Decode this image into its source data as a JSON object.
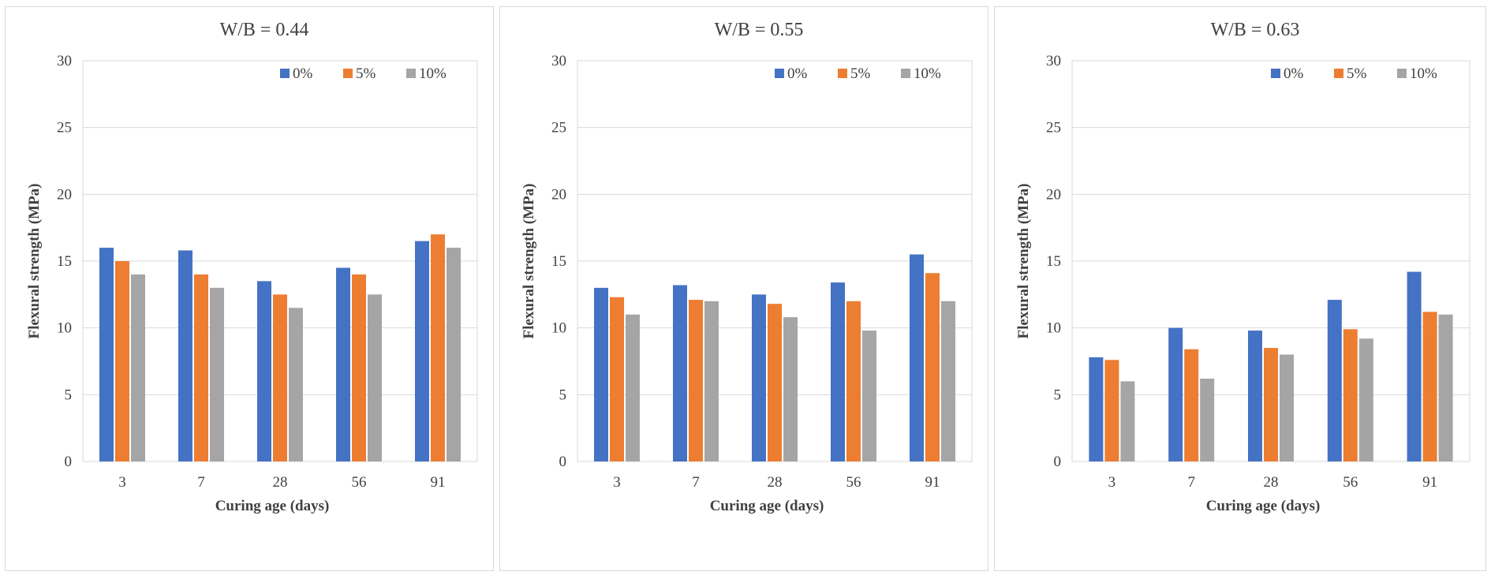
{
  "chart_data": [
    {
      "type": "bar",
      "title": "W/B = 0.44",
      "xlabel": "Curing age (days)",
      "ylabel": "Flexural strength (MPa)",
      "categories": [
        "3",
        "7",
        "28",
        "56",
        "91"
      ],
      "ylim": [
        0,
        30
      ],
      "yticks": [
        0,
        5,
        10,
        15,
        20,
        25,
        30
      ],
      "grid": true,
      "legend_position": "top-right",
      "series": [
        {
          "name": "0%",
          "color": "#4472c4",
          "values": [
            16.0,
            15.8,
            13.5,
            14.5,
            16.5
          ]
        },
        {
          "name": "5%",
          "color": "#ed7d31",
          "values": [
            15.0,
            14.0,
            12.5,
            14.0,
            17.0
          ]
        },
        {
          "name": "10%",
          "color": "#a5a5a5",
          "values": [
            14.0,
            13.0,
            11.5,
            12.5,
            16.0
          ]
        }
      ]
    },
    {
      "type": "bar",
      "title": "W/B = 0.55",
      "xlabel": "Curing age (days)",
      "ylabel": "Flexural strength (MPa)",
      "categories": [
        "3",
        "7",
        "28",
        "56",
        "91"
      ],
      "ylim": [
        0,
        30
      ],
      "yticks": [
        0,
        5,
        10,
        15,
        20,
        25,
        30
      ],
      "grid": true,
      "legend_position": "top-right",
      "series": [
        {
          "name": "0%",
          "color": "#4472c4",
          "values": [
            13.0,
            13.2,
            12.5,
            13.4,
            15.5
          ]
        },
        {
          "name": "5%",
          "color": "#ed7d31",
          "values": [
            12.3,
            12.1,
            11.8,
            12.0,
            14.1
          ]
        },
        {
          "name": "10%",
          "color": "#a5a5a5",
          "values": [
            11.0,
            12.0,
            10.8,
            9.8,
            12.0
          ]
        }
      ]
    },
    {
      "type": "bar",
      "title": "W/B = 0.63",
      "xlabel": "Curing age (days)",
      "ylabel": "Flexural strength (MPa)",
      "categories": [
        "3",
        "7",
        "28",
        "56",
        "91"
      ],
      "ylim": [
        0,
        30
      ],
      "yticks": [
        0,
        5,
        10,
        15,
        20,
        25,
        30
      ],
      "grid": true,
      "legend_position": "top-right",
      "series": [
        {
          "name": "0%",
          "color": "#4472c4",
          "values": [
            7.8,
            10.0,
            9.8,
            12.1,
            14.2
          ]
        },
        {
          "name": "5%",
          "color": "#ed7d31",
          "values": [
            7.6,
            8.4,
            8.5,
            9.9,
            11.2
          ]
        },
        {
          "name": "10%",
          "color": "#a5a5a5",
          "values": [
            6.0,
            6.2,
            8.0,
            9.2,
            11.0
          ]
        }
      ]
    }
  ]
}
